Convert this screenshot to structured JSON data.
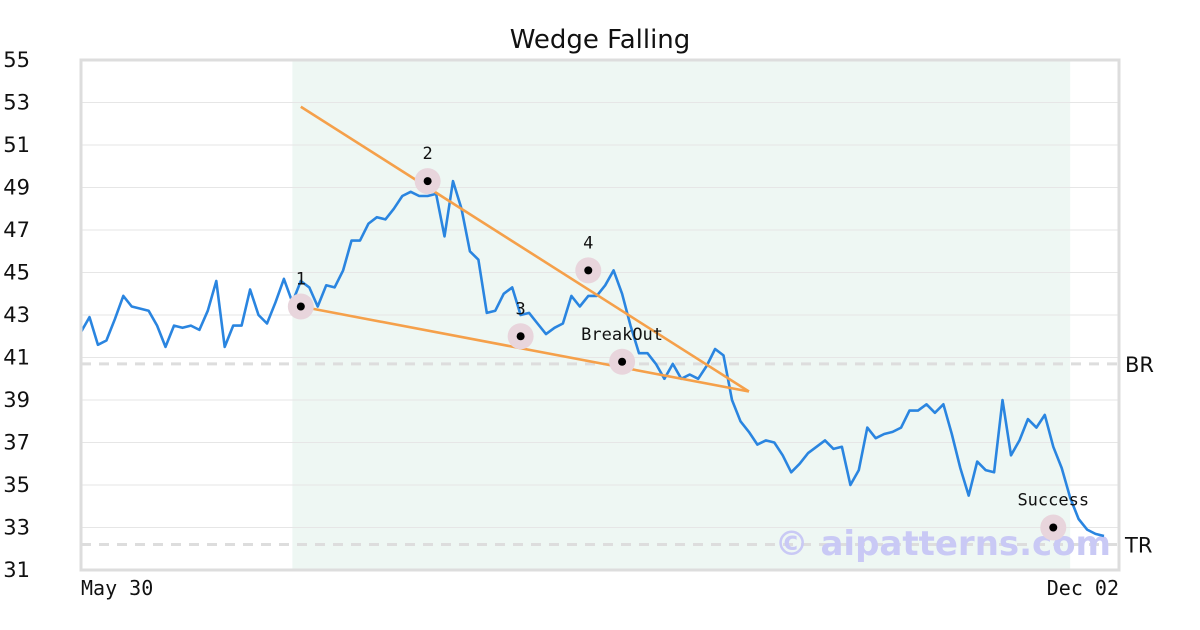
{
  "chart_data": {
    "type": "line",
    "title": "Wedge Falling",
    "xlabel": "",
    "ylabel": "",
    "ylim": [
      31,
      55
    ],
    "yticks": [
      31,
      33,
      35,
      37,
      39,
      41,
      43,
      45,
      47,
      49,
      51,
      53,
      55
    ],
    "x_tick_labels": [
      "May 30",
      "Dec 02"
    ],
    "grid": "horizontal",
    "colors": {
      "price": "#2a85e0",
      "trendline": "#f5a04a",
      "pattern_zone": "#eef7f3",
      "grid": "#e6e6e6",
      "reference": "#dddddd",
      "marker_halo": "#e8d5dc",
      "marker": "#000000",
      "frame": "#dddddd"
    },
    "pattern_zone": {
      "start_index": 25,
      "end_index": 117
    },
    "series": [
      {
        "values": [
          42.2,
          42.9,
          41.6,
          41.8,
          42.8,
          43.9,
          43.4,
          43.3,
          43.2,
          42.5,
          41.5,
          42.5,
          42.4,
          42.5,
          42.3,
          43.2,
          44.6,
          41.5,
          42.5,
          42.5,
          44.2,
          43.0,
          42.6,
          43.6,
          44.7,
          43.6,
          44.6,
          44.3,
          43.4,
          44.4,
          44.3,
          45.1,
          46.5,
          46.5,
          47.3,
          47.6,
          47.5,
          48.0,
          48.6,
          48.8,
          48.6,
          48.6,
          48.7,
          46.7,
          49.3,
          48.0,
          46.0,
          45.6,
          43.1,
          43.2,
          44.0,
          44.3,
          43.0,
          43.1,
          42.6,
          42.1,
          42.4,
          42.6,
          43.9,
          43.4,
          43.9,
          43.9,
          44.4,
          45.1,
          44.0,
          42.5,
          41.2,
          41.2,
          40.7,
          40.0,
          40.7,
          40.0,
          40.2,
          40.0,
          40.6,
          41.4,
          41.1,
          39.0,
          38.0,
          37.5,
          36.9,
          37.1,
          37.0,
          36.4,
          35.6,
          36.0,
          36.5,
          36.8,
          37.1,
          36.7,
          36.8,
          35.0,
          35.7,
          37.7,
          37.2,
          37.4,
          37.5,
          37.7,
          38.5,
          38.5,
          38.8,
          38.4,
          38.8,
          37.4,
          35.8,
          34.5,
          36.1,
          35.7,
          35.6,
          39.0,
          36.4,
          37.1,
          38.1,
          37.7,
          38.3,
          36.8,
          35.8,
          34.4,
          33.4,
          32.9,
          32.7,
          32.6
        ]
      }
    ],
    "trendlines": [
      {
        "x": [
          26,
          79
        ],
        "y": [
          52.8,
          39.4
        ]
      },
      {
        "x": [
          26,
          79
        ],
        "y": [
          43.4,
          39.4
        ]
      }
    ],
    "reference_lines": [
      {
        "label": "BR",
        "y": 40.7
      },
      {
        "label": "TR",
        "y": 32.2
      }
    ],
    "annotations": [
      {
        "label": "1",
        "index": 26,
        "y": 43.4
      },
      {
        "label": "2",
        "index": 41,
        "y": 49.3
      },
      {
        "label": "3",
        "index": 52,
        "y": 42.0
      },
      {
        "label": "4",
        "index": 60,
        "y": 45.1
      },
      {
        "label": "BreakOut",
        "index": 64,
        "y": 40.8
      },
      {
        "label": "Success",
        "index": 115,
        "y": 33.0
      }
    ],
    "watermark": "© aipatterns.com"
  }
}
